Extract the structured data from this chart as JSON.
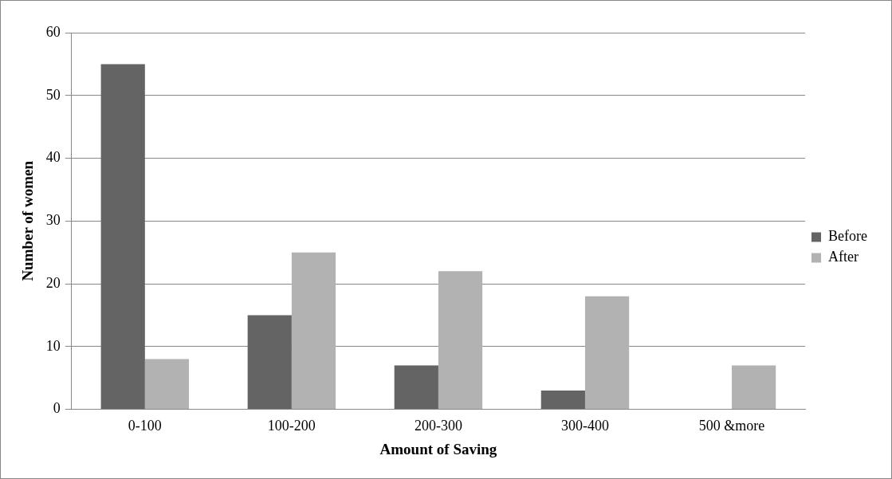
{
  "chart_data": {
    "type": "bar",
    "xlabel": "Amount of Saving",
    "ylabel": "Number of women",
    "categories": [
      "0-100",
      "100-200",
      "200-300",
      "300-400",
      "500 &more"
    ],
    "series": [
      {
        "name": "Before",
        "color": "#646464",
        "values": [
          55,
          15,
          7,
          3,
          null
        ]
      },
      {
        "name": "After",
        "color": "#b2b2b2",
        "values": [
          8,
          25,
          22,
          18,
          7
        ]
      }
    ],
    "ylim": [
      0,
      60
    ],
    "yticks": [
      0,
      10,
      20,
      30,
      40,
      50,
      60
    ],
    "grid": "y",
    "legend": "right"
  }
}
